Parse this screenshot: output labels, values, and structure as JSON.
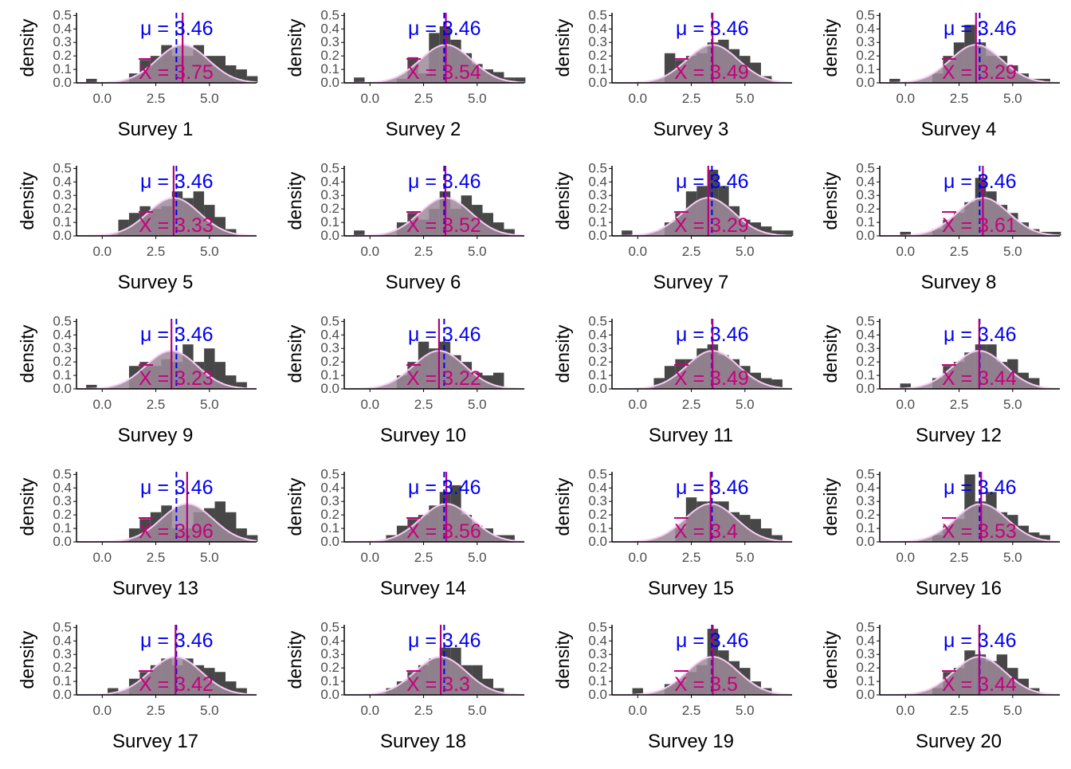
{
  "colors": {
    "bar": "#474747",
    "density_fill": "#9e8b9a",
    "density_line": "#f8cdf5",
    "mu_line": "#0000ee",
    "xbar_line": "#b5007e",
    "mu_text": "#0000ee",
    "xbar_text": "#c8007e",
    "axis": "#000000",
    "tick_text": "#4d4d4d"
  },
  "chart_data": {
    "type": "histogram",
    "population_mean": 3.46,
    "y_axis_label": "density",
    "y_ticks": [
      "0.0",
      "0.1",
      "0.2",
      "0.3",
      "0.4",
      "0.5"
    ],
    "x_ticks": [
      "0.0",
      "2.5",
      "5.0"
    ],
    "mu_label_prefix": "μ = ",
    "xbar_label_prefix": "X = ",
    "xlim": [
      -1.2,
      7.2
    ],
    "ylim": [
      0,
      0.52
    ],
    "grid": false,
    "bin_width": 0.5,
    "panels": [
      {
        "title": "Survey 1",
        "mean_label": "3.75",
        "mean": 3.75,
        "mu_label": "3.46",
        "bin_starts": [
          -0.75,
          1.25,
          1.75,
          2.25,
          2.75,
          3.25,
          3.75,
          4.25,
          4.75,
          5.25,
          5.75,
          6.25,
          6.75
        ],
        "densities": [
          0.03,
          0.07,
          0.17,
          0.2,
          0.28,
          0.2,
          0.2,
          0.28,
          0.2,
          0.2,
          0.13,
          0.1,
          0.05
        ]
      },
      {
        "title": "Survey 2",
        "mean_label": "3.54",
        "mean": 3.54,
        "mu_label": "3.46",
        "bin_starts": [
          -0.75,
          1.25,
          1.75,
          2.25,
          2.75,
          3.25,
          3.75,
          4.25,
          4.75,
          5.25,
          5.75,
          6.25,
          6.75
        ],
        "densities": [
          0.04,
          0.03,
          0.19,
          0.07,
          0.37,
          0.42,
          0.32,
          0.22,
          0.14,
          0.1,
          0.08,
          0.04,
          0.04
        ]
      },
      {
        "title": "Survey 3",
        "mean_label": "3.49",
        "mean": 3.49,
        "mu_label": "3.46",
        "bin_starts": [
          1.25,
          1.75,
          2.25,
          2.75,
          3.25,
          3.75,
          4.25,
          4.75,
          5.25,
          5.75
        ],
        "densities": [
          0.22,
          0.17,
          0.2,
          0.22,
          0.3,
          0.32,
          0.25,
          0.2,
          0.15,
          0.05
        ]
      },
      {
        "title": "Survey 4",
        "mean_label": "3.29",
        "mean": 3.29,
        "mu_label": "3.46",
        "bin_starts": [
          -0.75,
          1.25,
          1.75,
          2.25,
          2.75,
          3.25,
          3.75,
          4.25,
          4.75,
          5.25,
          5.75,
          6.25
        ],
        "densities": [
          0.03,
          0.07,
          0.2,
          0.3,
          0.43,
          0.3,
          0.2,
          0.2,
          0.13,
          0.07,
          0.03,
          0.03
        ]
      },
      {
        "title": "Survey 5",
        "mean_label": "3.33",
        "mean": 3.33,
        "mu_label": "3.46",
        "bin_starts": [
          0.75,
          1.25,
          1.75,
          2.25,
          2.75,
          3.25,
          3.75,
          4.25,
          4.75,
          5.25,
          5.75
        ],
        "densities": [
          0.12,
          0.17,
          0.22,
          0.2,
          0.22,
          0.33,
          0.28,
          0.33,
          0.23,
          0.14,
          0.05
        ]
      },
      {
        "title": "Survey 6",
        "mean_label": "3.52",
        "mean": 3.52,
        "mu_label": "3.46",
        "bin_starts": [
          -0.75,
          1.25,
          1.75,
          2.25,
          2.75,
          3.25,
          3.75,
          4.25,
          4.75,
          5.25,
          5.75,
          6.25
        ],
        "densities": [
          0.04,
          0.1,
          0.17,
          0.12,
          0.2,
          0.33,
          0.2,
          0.3,
          0.23,
          0.17,
          0.1,
          0.05
        ]
      },
      {
        "title": "Survey 7",
        "mean_label": "3.29",
        "mean": 3.29,
        "mu_label": "3.46",
        "bin_starts": [
          -0.75,
          1.25,
          1.75,
          2.25,
          2.75,
          3.25,
          3.75,
          4.25,
          4.75,
          5.25,
          5.75,
          6.25,
          6.75
        ],
        "densities": [
          0.04,
          0.1,
          0.17,
          0.33,
          0.37,
          0.49,
          0.37,
          0.22,
          0.12,
          0.1,
          0.07,
          0.04,
          0.04
        ]
      },
      {
        "title": "Survey 8",
        "mean_label": "3.61",
        "mean": 3.61,
        "mu_label": "3.46",
        "bin_starts": [
          -0.25,
          1.25,
          1.75,
          2.25,
          2.75,
          3.25,
          3.75,
          4.25,
          4.75,
          5.25,
          5.75,
          6.25,
          6.75
        ],
        "densities": [
          0.03,
          0.05,
          0.12,
          0.17,
          0.25,
          0.43,
          0.33,
          0.23,
          0.17,
          0.1,
          0.05,
          0.03,
          0.03
        ]
      },
      {
        "title": "Survey 9",
        "mean_label": "3.23",
        "mean": 3.23,
        "mu_label": "3.46",
        "bin_starts": [
          -0.75,
          1.25,
          1.75,
          2.25,
          2.75,
          3.25,
          3.75,
          4.25,
          4.75,
          5.25,
          5.75,
          6.25
        ],
        "densities": [
          0.03,
          0.17,
          0.2,
          0.17,
          0.22,
          0.2,
          0.33,
          0.2,
          0.3,
          0.2,
          0.1,
          0.05
        ]
      },
      {
        "title": "Survey 10",
        "mean_label": "3.22",
        "mean": 3.22,
        "mu_label": "3.46",
        "bin_starts": [
          1.25,
          1.75,
          2.25,
          2.75,
          3.25,
          3.75,
          4.25,
          4.75,
          5.25,
          5.75
        ],
        "densities": [
          0.1,
          0.2,
          0.35,
          0.3,
          0.35,
          0.25,
          0.2,
          0.12,
          0.1,
          0.12
        ]
      },
      {
        "title": "Survey 11",
        "mean_label": "3.49",
        "mean": 3.49,
        "mu_label": "3.46",
        "bin_starts": [
          0.75,
          1.25,
          1.75,
          2.25,
          2.75,
          3.25,
          3.75,
          4.25,
          4.75,
          5.25,
          5.75,
          6.25
        ],
        "densities": [
          0.08,
          0.17,
          0.22,
          0.22,
          0.3,
          0.33,
          0.25,
          0.22,
          0.17,
          0.12,
          0.08,
          0.07
        ]
      },
      {
        "title": "Survey 12",
        "mean_label": "3.44",
        "mean": 3.44,
        "mu_label": "3.46",
        "bin_starts": [
          -0.25,
          1.25,
          1.75,
          2.25,
          2.75,
          3.25,
          3.75,
          4.25,
          4.75,
          5.25,
          5.75
        ],
        "densities": [
          0.04,
          0.08,
          0.17,
          0.2,
          0.27,
          0.33,
          0.33,
          0.2,
          0.22,
          0.12,
          0.08
        ]
      },
      {
        "title": "Survey 13",
        "mean_label": "3.96",
        "mean": 3.96,
        "mu_label": "3.46",
        "bin_starts": [
          1.25,
          1.75,
          2.25,
          2.75,
          3.25,
          3.75,
          4.25,
          4.75,
          5.25,
          5.75,
          6.25,
          6.75
        ],
        "densities": [
          0.1,
          0.17,
          0.22,
          0.27,
          0.1,
          0.1,
          0.22,
          0.25,
          0.3,
          0.22,
          0.1,
          0.05
        ]
      },
      {
        "title": "Survey 14",
        "mean_label": "3.56",
        "mean": 3.56,
        "mu_label": "3.46",
        "bin_starts": [
          0.75,
          1.25,
          1.75,
          2.25,
          2.75,
          3.25,
          3.75,
          4.25,
          4.75,
          5.25,
          5.75,
          6.25
        ],
        "densities": [
          0.05,
          0.12,
          0.17,
          0.2,
          0.27,
          0.37,
          0.42,
          0.2,
          0.12,
          0.1,
          0.05,
          0.05
        ]
      },
      {
        "title": "Survey 15",
        "mean_label": "3.4",
        "mean": 3.4,
        "mu_label": "3.46",
        "bin_starts": [
          1.75,
          2.25,
          2.75,
          3.25,
          3.75,
          4.25,
          4.75,
          5.25,
          5.75,
          6.25
        ],
        "densities": [
          0.1,
          0.33,
          0.3,
          0.3,
          0.3,
          0.22,
          0.2,
          0.17,
          0.1,
          0.05
        ]
      },
      {
        "title": "Survey 16",
        "mean_label": "3.53",
        "mean": 3.53,
        "mu_label": "3.46",
        "bin_starts": [
          1.25,
          1.75,
          2.25,
          2.75,
          3.25,
          3.75,
          4.25,
          4.75,
          5.25,
          5.75,
          6.25
        ],
        "densities": [
          0.05,
          0.12,
          0.17,
          0.5,
          0.3,
          0.37,
          0.22,
          0.2,
          0.12,
          0.07,
          0.05
        ]
      },
      {
        "title": "Survey 17",
        "mean_label": "3.42",
        "mean": 3.42,
        "mu_label": "3.46",
        "bin_starts": [
          0.25,
          1.25,
          1.75,
          2.25,
          2.75,
          3.25,
          3.75,
          4.25,
          4.75,
          5.25,
          5.75,
          6.25
        ],
        "densities": [
          0.05,
          0.12,
          0.17,
          0.22,
          0.27,
          0.22,
          0.27,
          0.22,
          0.2,
          0.17,
          0.1,
          0.05
        ]
      },
      {
        "title": "Survey 18",
        "mean_label": "3.3",
        "mean": 3.3,
        "mu_label": "3.46",
        "bin_starts": [
          0.75,
          1.25,
          1.75,
          2.25,
          2.75,
          3.25,
          3.75,
          4.25,
          4.75,
          5.25,
          5.75
        ],
        "densities": [
          0.05,
          0.1,
          0.17,
          0.22,
          0.27,
          0.35,
          0.35,
          0.22,
          0.22,
          0.12,
          0.05
        ]
      },
      {
        "title": "Survey 19",
        "mean_label": "3.5",
        "mean": 3.5,
        "mu_label": "3.46",
        "bin_starts": [
          -0.25,
          1.25,
          1.75,
          2.25,
          2.75,
          3.25,
          3.75,
          4.25,
          4.75,
          5.25,
          5.75
        ],
        "densities": [
          0.05,
          0.08,
          0.1,
          0.17,
          0.22,
          0.49,
          0.33,
          0.25,
          0.2,
          0.1,
          0.05
        ]
      },
      {
        "title": "Survey 20",
        "mean_label": "3.44",
        "mean": 3.44,
        "mu_label": "3.46",
        "bin_starts": [
          1.25,
          1.75,
          2.25,
          2.75,
          3.25,
          3.75,
          4.25,
          4.75,
          5.25,
          5.75
        ],
        "densities": [
          0.05,
          0.17,
          0.2,
          0.33,
          0.3,
          0.25,
          0.3,
          0.2,
          0.12,
          0.05
        ]
      }
    ]
  }
}
